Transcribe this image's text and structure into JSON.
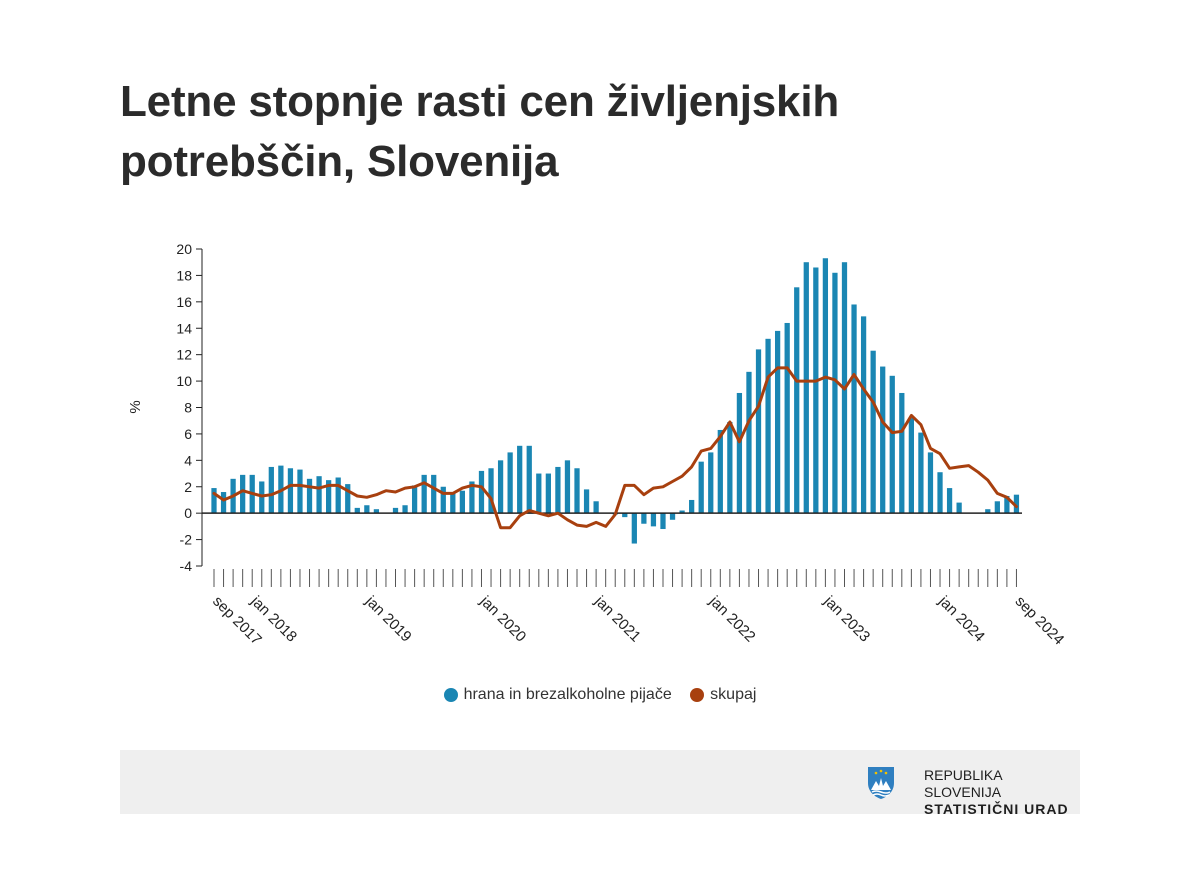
{
  "title": "Letne stopnje rasti cen življenjskih potrebščin, Slovenija",
  "colors": {
    "bars": "#1a86b3",
    "line": "#a8400f",
    "axis": "#222222",
    "tick_text": "#222222"
  },
  "chart_data": {
    "type": "bar",
    "ylabel": "%",
    "ylim": [
      -4,
      20
    ],
    "yticks": [
      20,
      18,
      16,
      14,
      12,
      10,
      8,
      6,
      4,
      2,
      0,
      -2,
      -4
    ],
    "x_start": "sep 2017",
    "x_end": "sep 2024",
    "xtick_labels": [
      {
        "label": "sep 2017",
        "index": 0
      },
      {
        "label": "jan 2018",
        "index": 4
      },
      {
        "label": "jan 2019",
        "index": 16
      },
      {
        "label": "jan 2020",
        "index": 28
      },
      {
        "label": "jan 2021",
        "index": 40
      },
      {
        "label": "jan 2022",
        "index": 52
      },
      {
        "label": "jan 2023",
        "index": 64
      },
      {
        "label": "jan 2024",
        "index": 76
      },
      {
        "label": "sep 2024",
        "index": 84
      }
    ],
    "legend_position": "bottom",
    "series": [
      {
        "name": "hrana in brezalkoholne pijače",
        "type": "bar",
        "values": [
          1.9,
          1.6,
          2.6,
          2.9,
          2.9,
          2.4,
          3.5,
          3.6,
          3.4,
          3.3,
          2.6,
          2.8,
          2.5,
          2.7,
          2.2,
          0.4,
          0.6,
          0.3,
          0.0,
          0.4,
          0.6,
          2.1,
          2.9,
          2.9,
          2.0,
          1.6,
          1.7,
          2.4,
          3.2,
          3.4,
          4.0,
          4.6,
          5.1,
          5.1,
          3.0,
          3.0,
          3.5,
          4.0,
          3.4,
          1.8,
          0.9,
          0.0,
          -0.1,
          -0.3,
          -2.3,
          -0.8,
          -1.0,
          -1.2,
          -0.5,
          0.2,
          1.0,
          3.9,
          4.6,
          6.3,
          6.9,
          9.1,
          10.7,
          12.4,
          13.2,
          13.8,
          14.4,
          17.1,
          19.0,
          18.6,
          19.3,
          18.2,
          19.0,
          15.8,
          14.9,
          12.3,
          11.1,
          10.4,
          9.1,
          7.2,
          6.1,
          4.6,
          3.1,
          1.9,
          0.8,
          0.0,
          0.0,
          0.3,
          0.9,
          1.3,
          1.4
        ]
      },
      {
        "name": "skupaj",
        "type": "line",
        "values": [
          1.5,
          1.0,
          1.3,
          1.7,
          1.5,
          1.3,
          1.4,
          1.7,
          2.1,
          2.1,
          2.0,
          1.9,
          2.1,
          2.1,
          1.7,
          1.3,
          1.2,
          1.4,
          1.7,
          1.6,
          1.9,
          2.0,
          2.3,
          1.9,
          1.5,
          1.5,
          1.9,
          2.1,
          2.0,
          1.1,
          -1.1,
          -1.1,
          -0.2,
          0.2,
          0.0,
          -0.2,
          0.0,
          -0.5,
          -0.9,
          -1.0,
          -0.7,
          -1.0,
          -0.1,
          2.1,
          2.1,
          1.4,
          1.9,
          2.0,
          2.4,
          2.8,
          3.5,
          4.7,
          4.9,
          5.8,
          6.9,
          5.4,
          7.0,
          8.1,
          10.3,
          11.0,
          11.0,
          10.0,
          10.0,
          10.0,
          10.3,
          10.1,
          9.4,
          10.5,
          9.4,
          8.4,
          6.9,
          6.1,
          6.2,
          7.4,
          6.7,
          4.9,
          4.5,
          3.4,
          3.5,
          3.6,
          3.1,
          2.5,
          1.5,
          1.2,
          0.5
        ]
      }
    ]
  },
  "legend": {
    "items": [
      "hrana in brezalkoholne pijače",
      "skupaj"
    ]
  },
  "footer": {
    "org_line1": "REPUBLIKA SLOVENIJA",
    "org_line2": "STATISTIČNI URAD"
  }
}
